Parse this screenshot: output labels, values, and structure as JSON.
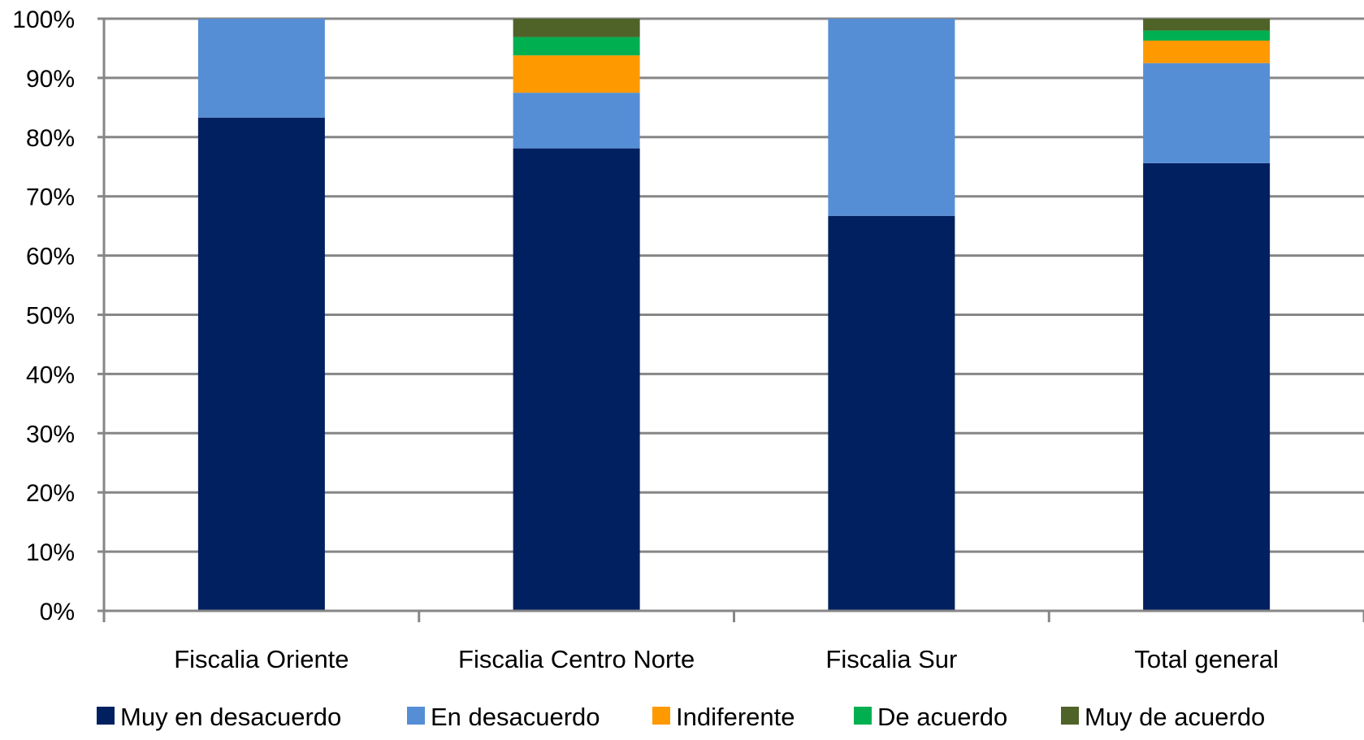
{
  "chart_data": {
    "type": "bar",
    "stacked": "percent",
    "categories": [
      "Fiscalia Oriente",
      "Fiscalia Centro Norte",
      "Fiscalia Sur",
      "Total general"
    ],
    "series": [
      {
        "name": "Muy en desacuerdo",
        "color": "#002060",
        "values": [
          83.3,
          78.1,
          66.7,
          75.6
        ]
      },
      {
        "name": "En desacuerdo",
        "color": "#558ED5",
        "values": [
          16.7,
          9.4,
          33.3,
          16.9
        ]
      },
      {
        "name": "Indiferente",
        "color": "#FF9900",
        "values": [
          0,
          6.3,
          0,
          3.8
        ]
      },
      {
        "name": "De acuerdo",
        "color": "#00B050",
        "values": [
          0,
          3.1,
          0,
          1.7
        ]
      },
      {
        "name": "Muy de acuerdo",
        "color": "#4F6228",
        "values": [
          0,
          3.1,
          0,
          2.0
        ]
      }
    ],
    "y_ticks": [
      "0%",
      "10%",
      "20%",
      "30%",
      "40%",
      "50%",
      "60%",
      "70%",
      "80%",
      "90%",
      "100%"
    ],
    "ylim": [
      0,
      100
    ],
    "grid": true,
    "legend_position": "bottom",
    "gridline_color": "#868686"
  }
}
